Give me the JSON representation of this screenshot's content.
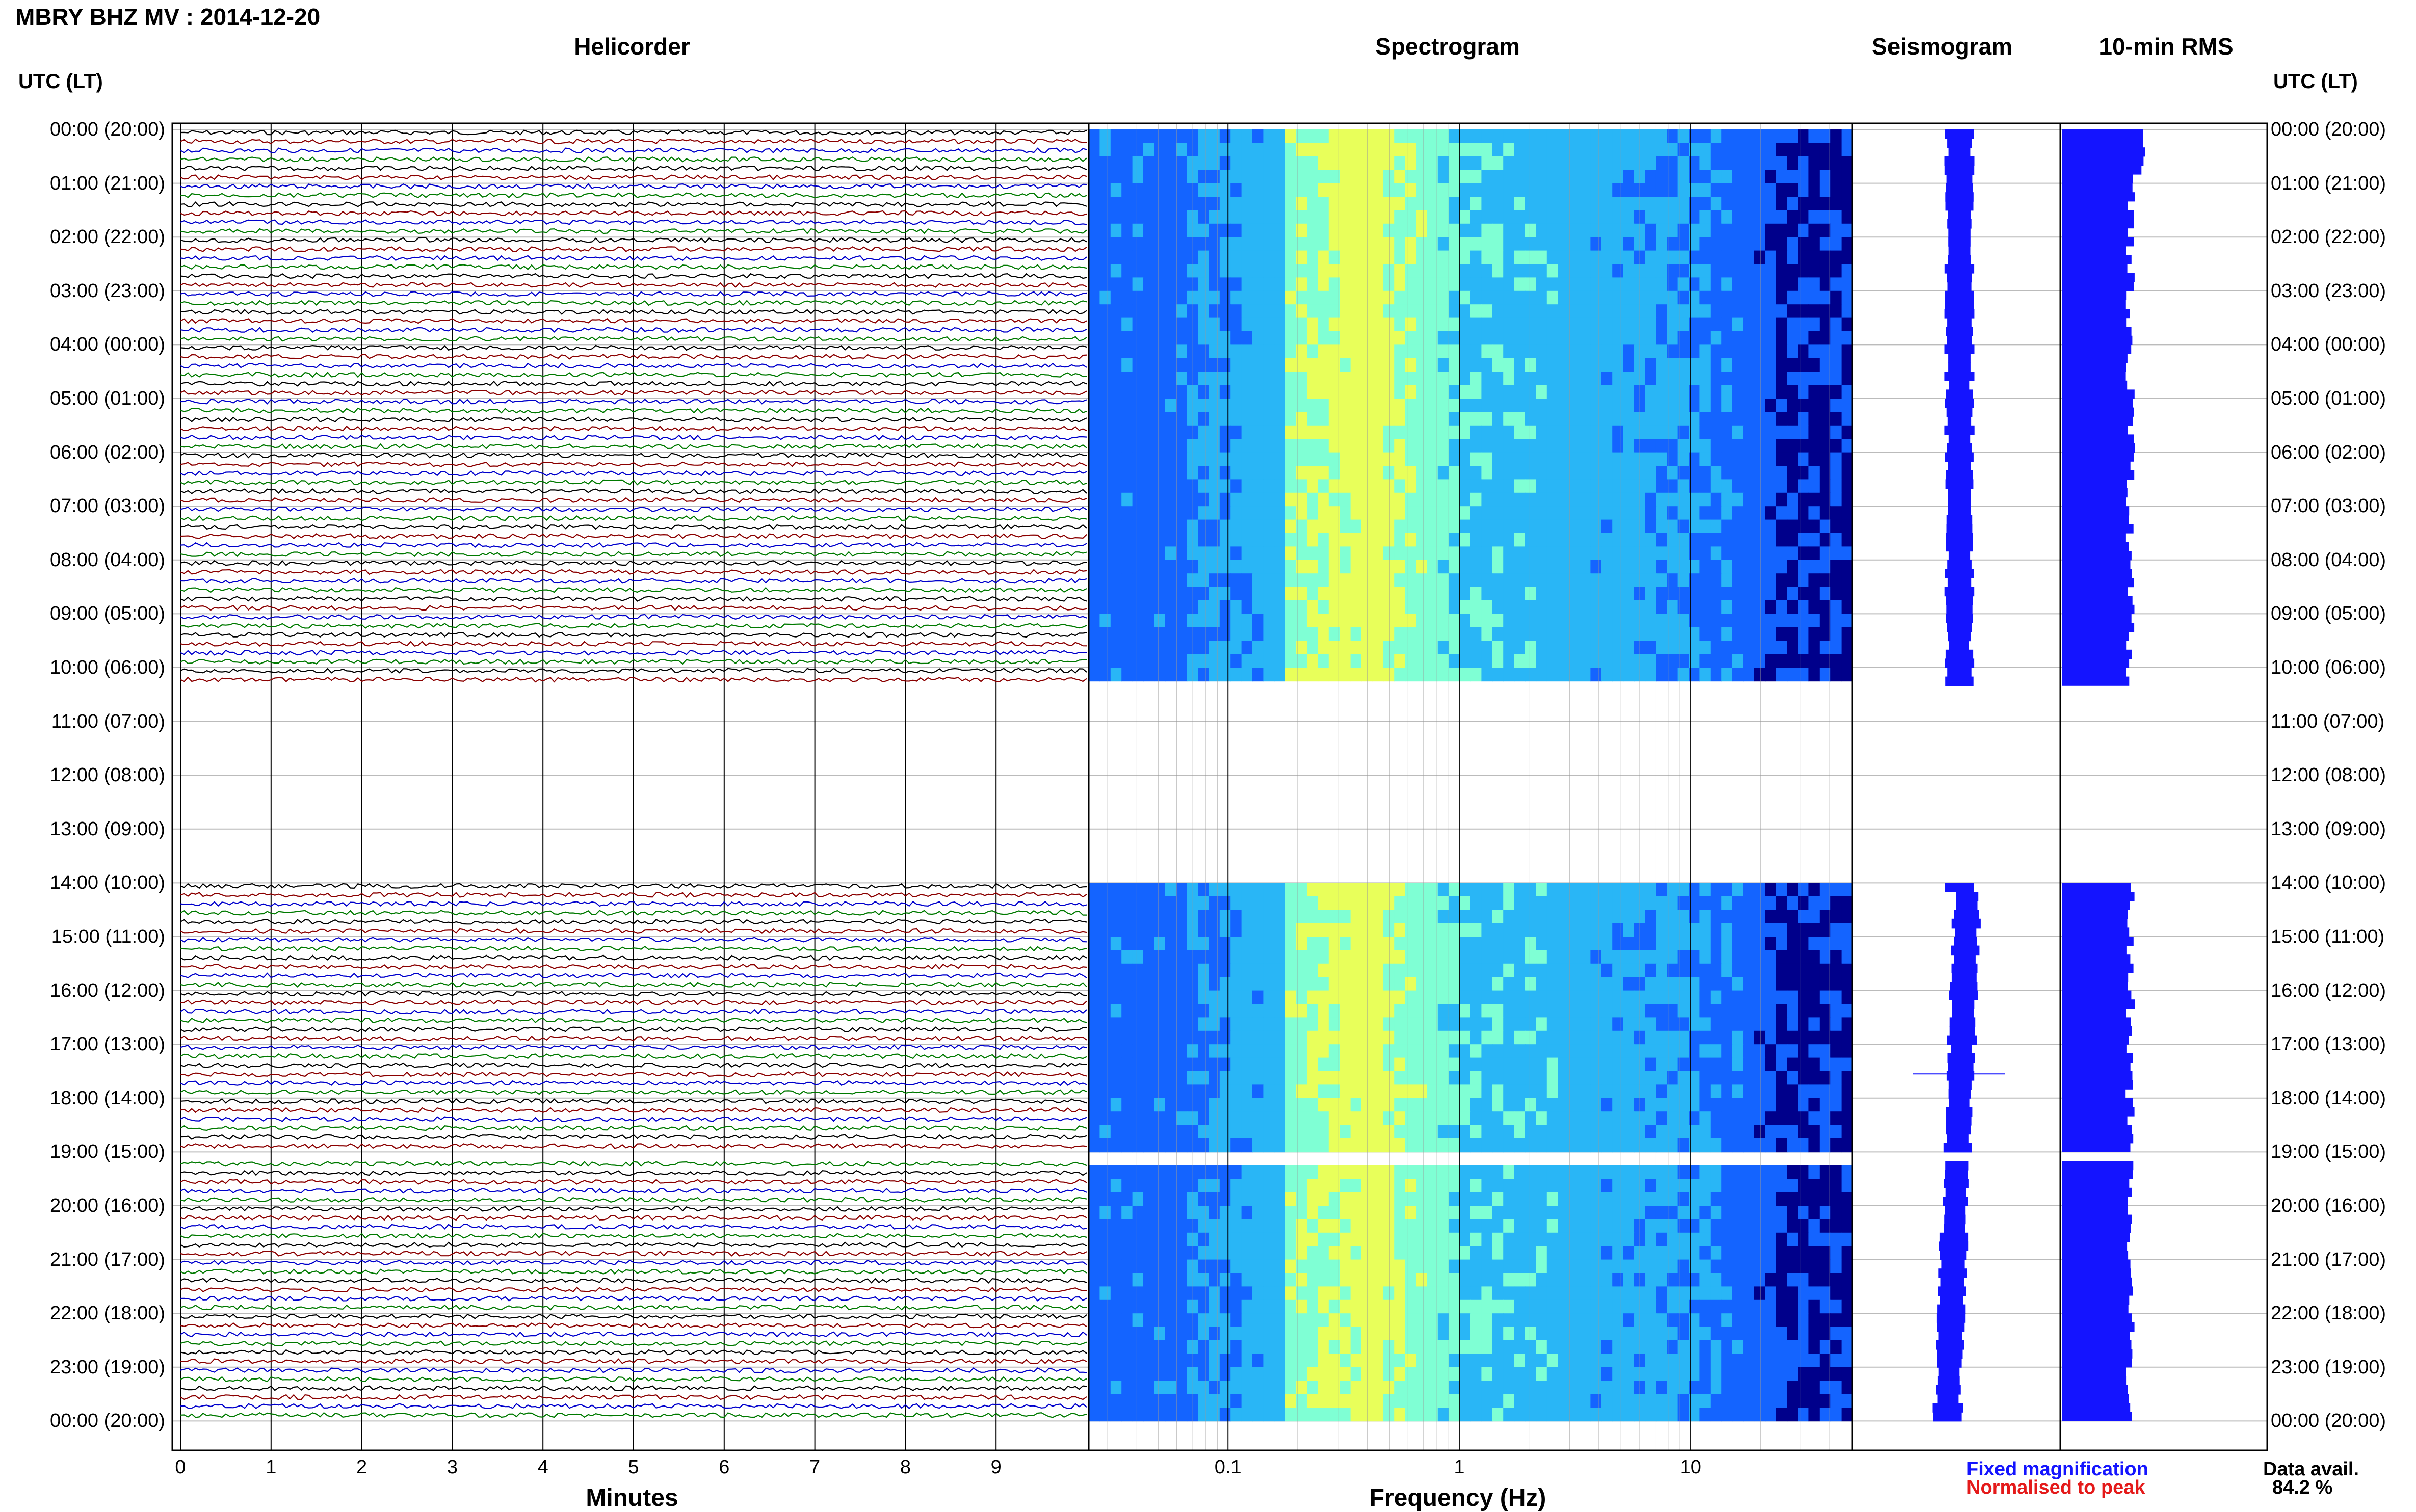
{
  "header": {
    "title": "MBRY BHZ MV : 2014-12-20"
  },
  "panels": {
    "helicorder": "Helicorder",
    "spectrogram": "Spectrogram",
    "seismogram": "Seismogram",
    "rms": "10-min RMS"
  },
  "axis": {
    "utc_label": "UTC (LT)",
    "minutes_label": "Minutes",
    "frequency_label": "Frequency (Hz)",
    "minute_ticks": [
      "0",
      "1",
      "2",
      "3",
      "4",
      "5",
      "6",
      "7",
      "8",
      "9"
    ],
    "frequency_ticks": [
      "0.1",
      "1",
      "10"
    ]
  },
  "legend": {
    "fixed": "Fixed magnification",
    "normalised": "Normalised to peak",
    "fixed_color": "#1414ff",
    "normalised_color": "#e41a1a"
  },
  "availability": {
    "label": "Data avail.",
    "value": "84.2 %"
  },
  "chart_data": {
    "type": "heatmap",
    "station": "MBRY BHZ MV",
    "date": "2014-12-20",
    "time_labels": [
      "00:00 (20:00)",
      "01:00 (21:00)",
      "02:00 (22:00)",
      "03:00 (23:00)",
      "04:00 (00:00)",
      "05:00 (01:00)",
      "06:00 (02:00)",
      "07:00 (03:00)",
      "08:00 (04:00)",
      "09:00 (05:00)",
      "10:00 (06:00)",
      "11:00 (07:00)",
      "12:00 (08:00)",
      "13:00 (09:00)",
      "14:00 (10:00)",
      "15:00 (11:00)",
      "16:00 (12:00)",
      "17:00 (13:00)",
      "18:00 (14:00)",
      "19:00 (15:00)",
      "20:00 (16:00)",
      "21:00 (17:00)",
      "22:00 (18:00)",
      "23:00 (19:00)",
      "00:00 (20:00)"
    ],
    "data_gaps_utc_hours": [
      [
        10.25,
        14.0
      ],
      [
        19.0,
        19.1
      ]
    ],
    "trace_colors": [
      "#000000",
      "#8b0000",
      "#0000cc",
      "#007a00"
    ],
    "spectrogram_colors": [
      "#00008b",
      "#1464ff",
      "#29b6f6",
      "#7fffd4",
      "#e8ff5a"
    ],
    "frequency_range_hz": [
      0.025,
      50
    ],
    "minutes_range": [
      0,
      10
    ],
    "data_availability_percent": 84.2
  }
}
